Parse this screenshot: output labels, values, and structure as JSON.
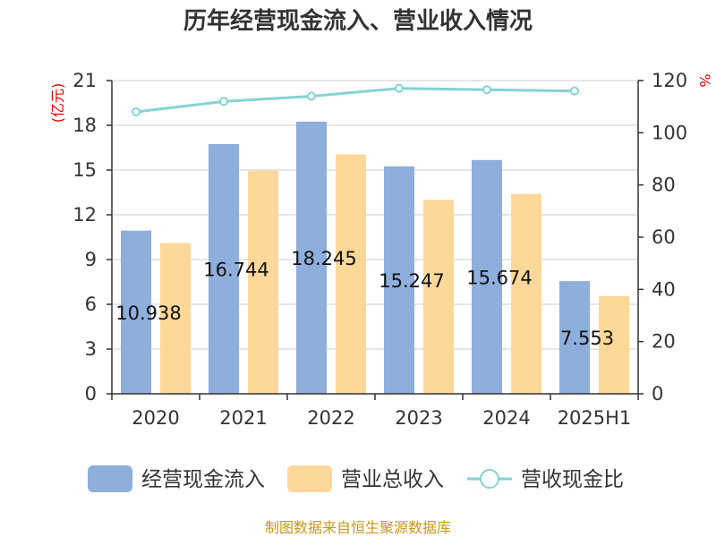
{
  "chart_data": {
    "type": "bar",
    "title": "历年经营现金流入、营业收入情况",
    "categories": [
      "2020",
      "2021",
      "2022",
      "2023",
      "2024",
      "2025H1"
    ],
    "y_left": {
      "label": "(亿元)",
      "ylim": [
        0,
        21
      ],
      "ticks": [
        "0",
        "3",
        "6",
        "9",
        "12",
        "15",
        "18",
        "21"
      ]
    },
    "y_right": {
      "label": "%",
      "ylim": [
        0,
        120
      ],
      "ticks": [
        "0",
        "20",
        "40",
        "60",
        "80",
        "100",
        "120"
      ]
    },
    "series": [
      {
        "name": "经营现金流入",
        "type": "bar",
        "axis": "left",
        "color": "#8eaedb",
        "values": [
          10.938,
          16.744,
          18.245,
          15.247,
          15.674,
          7.553
        ],
        "labels": [
          "10.938",
          "16.744",
          "18.245",
          "15.247",
          "15.674",
          "7.553"
        ]
      },
      {
        "name": "营业总收入",
        "type": "bar",
        "axis": "left",
        "color": "#fdd899",
        "values": [
          10.1,
          14.95,
          16.05,
          13.0,
          13.4,
          6.55
        ]
      },
      {
        "name": "营收现金比",
        "type": "line",
        "axis": "right",
        "color": "#85d3d3",
        "values": [
          108,
          112,
          114,
          117,
          116.5,
          116
        ]
      }
    ],
    "grid": true,
    "legend_position": "bottom"
  },
  "source": "制图数据来自恒生聚源数据库"
}
